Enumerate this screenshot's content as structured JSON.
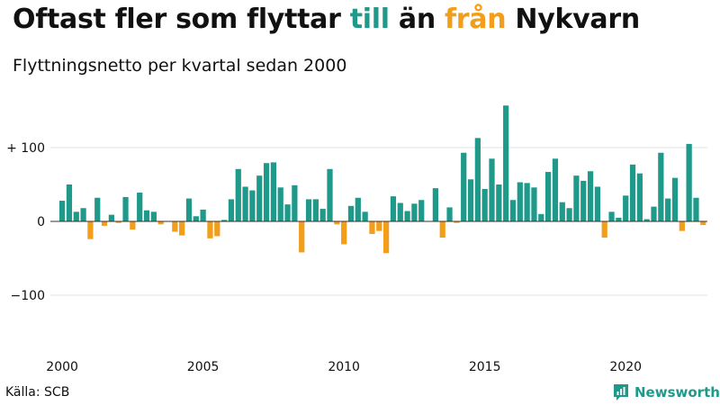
{
  "title": {
    "part1": "Oftast fler som flyttar ",
    "positive_word": "till",
    "part2": " än ",
    "negative_word": "från",
    "part3": " Nykvarn"
  },
  "subtitle": "Flyttningsnetto per kvartal sedan 2000",
  "source": "Källa: SCB",
  "brand": {
    "name": "Newsworthy",
    "icon": "newsworthy-logo-icon"
  },
  "colors": {
    "positive": "#1f9a8a",
    "negative": "#f29e1b",
    "grid": "#e3e3e3",
    "axis": "#333333"
  },
  "chart_data": {
    "type": "bar",
    "ylim": [
      -165,
      165
    ],
    "grid": true,
    "x_ticks": [
      "2000",
      "2005",
      "2010",
      "2015",
      "2020"
    ],
    "y_ticks": [
      {
        "value": 100,
        "label": "+ 100"
      },
      {
        "value": 0,
        "label": "0"
      },
      {
        "value": -100,
        "label": "−100"
      }
    ],
    "series": [
      {
        "values": [
          28,
          50,
          13,
          18,
          -24,
          32,
          -6,
          9,
          -2,
          33,
          -11,
          39,
          15,
          13,
          -4,
          0,
          -14,
          -19,
          31,
          7,
          16,
          -23,
          -20,
          2,
          30,
          71,
          47,
          42,
          62,
          79,
          80,
          46,
          23,
          49,
          -42,
          30,
          30,
          17,
          71,
          -4,
          -31,
          21,
          32,
          13,
          -17,
          -13,
          -43,
          34,
          25,
          14,
          24,
          29,
          0,
          45,
          -22,
          19,
          -2,
          93,
          57,
          113,
          44,
          85,
          50,
          157,
          29,
          53,
          52,
          46,
          10,
          67,
          85,
          26,
          18,
          62,
          55,
          68,
          47,
          -22,
          13,
          5,
          35,
          77,
          65,
          3,
          20,
          93,
          31,
          59,
          -13,
          105,
          32,
          -5
        ]
      }
    ]
  }
}
